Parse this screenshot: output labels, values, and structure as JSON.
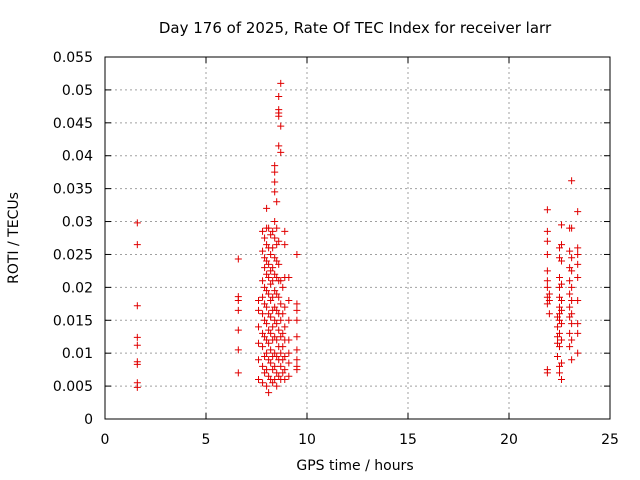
{
  "chart_data": {
    "type": "scatter",
    "title": "Day 176 of 2025, Rate Of TEC Index for receiver larr",
    "xlabel": "GPS time / hours",
    "ylabel": "ROTI / TECUs",
    "xlim": [
      0,
      25
    ],
    "ylim": [
      0,
      0.055
    ],
    "xticks": [
      "0",
      "5",
      "10",
      "15",
      "20",
      "25"
    ],
    "yticks": [
      "0",
      "0.005",
      "0.01",
      "0.015",
      "0.02",
      "0.025",
      "0.03",
      "0.035",
      "0.04",
      "0.045",
      "0.05",
      "0.055"
    ],
    "grid": true,
    "marker": "plus",
    "color": "#e00000",
    "series": [
      {
        "points": [
          [
            1.6,
            0.0298
          ],
          [
            1.6,
            0.0265
          ],
          [
            1.6,
            0.0172
          ],
          [
            1.6,
            0.0124
          ],
          [
            1.6,
            0.0112
          ],
          [
            1.6,
            0.0087
          ],
          [
            1.6,
            0.0083
          ],
          [
            1.6,
            0.0055
          ],
          [
            1.6,
            0.0048
          ],
          [
            6.6,
            0.0243
          ],
          [
            6.6,
            0.0186
          ],
          [
            6.6,
            0.018
          ],
          [
            6.6,
            0.0165
          ],
          [
            6.6,
            0.0135
          ],
          [
            6.6,
            0.0105
          ],
          [
            6.6,
            0.007
          ],
          [
            7.6,
            0.018
          ],
          [
            7.6,
            0.0165
          ],
          [
            7.6,
            0.014
          ],
          [
            7.6,
            0.0115
          ],
          [
            7.6,
            0.009
          ],
          [
            7.6,
            0.006
          ],
          [
            7.8,
            0.0285
          ],
          [
            7.8,
            0.0255
          ],
          [
            7.8,
            0.021
          ],
          [
            7.8,
            0.0185
          ],
          [
            7.8,
            0.016
          ],
          [
            7.8,
            0.013
          ],
          [
            7.8,
            0.011
          ],
          [
            7.8,
            0.008
          ],
          [
            7.8,
            0.0055
          ],
          [
            7.9,
            0.0275
          ],
          [
            7.9,
            0.0245
          ],
          [
            7.9,
            0.023
          ],
          [
            7.9,
            0.02
          ],
          [
            7.9,
            0.0175
          ],
          [
            7.9,
            0.015
          ],
          [
            7.9,
            0.0125
          ],
          [
            7.9,
            0.0095
          ],
          [
            7.9,
            0.007
          ],
          [
            8.0,
            0.032
          ],
          [
            8.0,
            0.029
          ],
          [
            8.0,
            0.0265
          ],
          [
            8.0,
            0.024
          ],
          [
            8.0,
            0.022
          ],
          [
            8.0,
            0.0195
          ],
          [
            8.0,
            0.017
          ],
          [
            8.0,
            0.0145
          ],
          [
            8.0,
            0.012
          ],
          [
            8.0,
            0.01
          ],
          [
            8.0,
            0.0075
          ],
          [
            8.0,
            0.005
          ],
          [
            8.1,
            0.029
          ],
          [
            8.1,
            0.026
          ],
          [
            8.1,
            0.0235
          ],
          [
            8.1,
            0.0215
          ],
          [
            8.1,
            0.019
          ],
          [
            8.1,
            0.016
          ],
          [
            8.1,
            0.0135
          ],
          [
            8.1,
            0.0115
          ],
          [
            8.1,
            0.009
          ],
          [
            8.1,
            0.0065
          ],
          [
            8.1,
            0.004
          ],
          [
            8.2,
            0.028
          ],
          [
            8.2,
            0.025
          ],
          [
            8.2,
            0.0225
          ],
          [
            8.2,
            0.0205
          ],
          [
            8.2,
            0.018
          ],
          [
            8.2,
            0.0155
          ],
          [
            8.2,
            0.013
          ],
          [
            8.2,
            0.0105
          ],
          [
            8.2,
            0.0085
          ],
          [
            8.2,
            0.006
          ],
          [
            8.3,
            0.0285
          ],
          [
            8.3,
            0.026
          ],
          [
            8.3,
            0.023
          ],
          [
            8.3,
            0.021
          ],
          [
            8.3,
            0.0185
          ],
          [
            8.3,
            0.0165
          ],
          [
            8.3,
            0.014
          ],
          [
            8.3,
            0.012
          ],
          [
            8.3,
            0.0095
          ],
          [
            8.3,
            0.0075
          ],
          [
            8.3,
            0.0055
          ],
          [
            8.4,
            0.0385
          ],
          [
            8.4,
            0.0375
          ],
          [
            8.4,
            0.036
          ],
          [
            8.4,
            0.0345
          ],
          [
            8.4,
            0.03
          ],
          [
            8.4,
            0.0275
          ],
          [
            8.4,
            0.0245
          ],
          [
            8.4,
            0.022
          ],
          [
            8.4,
            0.0195
          ],
          [
            8.4,
            0.017
          ],
          [
            8.4,
            0.015
          ],
          [
            8.4,
            0.0125
          ],
          [
            8.4,
            0.01
          ],
          [
            8.4,
            0.008
          ],
          [
            8.4,
            0.006
          ],
          [
            8.5,
            0.033
          ],
          [
            8.5,
            0.029
          ],
          [
            8.5,
            0.0265
          ],
          [
            8.5,
            0.024
          ],
          [
            8.5,
            0.0215
          ],
          [
            8.5,
            0.019
          ],
          [
            8.5,
            0.0165
          ],
          [
            8.5,
            0.0145
          ],
          [
            8.5,
            0.012
          ],
          [
            8.5,
            0.0095
          ],
          [
            8.5,
            0.007
          ],
          [
            8.5,
            0.005
          ],
          [
            8.6,
            0.049
          ],
          [
            8.6,
            0.047
          ],
          [
            8.6,
            0.0465
          ],
          [
            8.6,
            0.046
          ],
          [
            8.6,
            0.0415
          ],
          [
            8.6,
            0.027
          ],
          [
            8.6,
            0.0235
          ],
          [
            8.6,
            0.021
          ],
          [
            8.6,
            0.0185
          ],
          [
            8.6,
            0.016
          ],
          [
            8.6,
            0.0135
          ],
          [
            8.6,
            0.011
          ],
          [
            8.6,
            0.009
          ],
          [
            8.6,
            0.0065
          ],
          [
            8.7,
            0.051
          ],
          [
            8.7,
            0.0445
          ],
          [
            8.7,
            0.0405
          ],
          [
            8.7,
            0.021
          ],
          [
            8.7,
            0.0175
          ],
          [
            8.7,
            0.015
          ],
          [
            8.7,
            0.0125
          ],
          [
            8.7,
            0.01
          ],
          [
            8.7,
            0.008
          ],
          [
            8.7,
            0.006
          ],
          [
            8.8,
            0.02
          ],
          [
            8.8,
            0.016
          ],
          [
            8.8,
            0.013
          ],
          [
            8.8,
            0.011
          ],
          [
            8.8,
            0.009
          ],
          [
            8.8,
            0.007
          ],
          [
            8.9,
            0.0285
          ],
          [
            8.9,
            0.0265
          ],
          [
            8.9,
            0.0215
          ],
          [
            8.9,
            0.017
          ],
          [
            8.9,
            0.014
          ],
          [
            8.9,
            0.012
          ],
          [
            8.9,
            0.0095
          ],
          [
            8.9,
            0.0075
          ],
          [
            8.9,
            0.006
          ],
          [
            9.1,
            0.0215
          ],
          [
            9.1,
            0.018
          ],
          [
            9.1,
            0.015
          ],
          [
            9.1,
            0.012
          ],
          [
            9.1,
            0.01
          ],
          [
            9.1,
            0.0085
          ],
          [
            9.1,
            0.0065
          ],
          [
            9.5,
            0.025
          ],
          [
            9.5,
            0.0175
          ],
          [
            9.5,
            0.0165
          ],
          [
            9.5,
            0.015
          ],
          [
            9.5,
            0.0125
          ],
          [
            9.5,
            0.0105
          ],
          [
            9.5,
            0.009
          ],
          [
            9.5,
            0.008
          ],
          [
            9.5,
            0.0075
          ],
          [
            21.9,
            0.0318
          ],
          [
            21.9,
            0.0285
          ],
          [
            21.9,
            0.027
          ],
          [
            21.9,
            0.025
          ],
          [
            21.9,
            0.0225
          ],
          [
            21.9,
            0.021
          ],
          [
            21.9,
            0.02
          ],
          [
            21.9,
            0.0185
          ],
          [
            21.9,
            0.0175
          ],
          [
            21.9,
            0.0075
          ],
          [
            21.9,
            0.007
          ],
          [
            22.0,
            0.019
          ],
          [
            22.0,
            0.018
          ],
          [
            22.0,
            0.016
          ],
          [
            22.4,
            0.0155
          ],
          [
            22.4,
            0.014
          ],
          [
            22.4,
            0.0125
          ],
          [
            22.4,
            0.0115
          ],
          [
            22.4,
            0.0095
          ],
          [
            22.5,
            0.026
          ],
          [
            22.5,
            0.0245
          ],
          [
            22.5,
            0.0215
          ],
          [
            22.5,
            0.02
          ],
          [
            22.5,
            0.0185
          ],
          [
            22.5,
            0.017
          ],
          [
            22.5,
            0.016
          ],
          [
            22.5,
            0.015
          ],
          [
            22.5,
            0.013
          ],
          [
            22.5,
            0.011
          ],
          [
            22.5,
            0.008
          ],
          [
            22.5,
            0.007
          ],
          [
            22.6,
            0.0295
          ],
          [
            22.6,
            0.0265
          ],
          [
            22.6,
            0.024
          ],
          [
            22.6,
            0.0205
          ],
          [
            22.6,
            0.018
          ],
          [
            22.6,
            0.0165
          ],
          [
            22.6,
            0.0145
          ],
          [
            22.6,
            0.012
          ],
          [
            22.6,
            0.0085
          ],
          [
            22.6,
            0.006
          ],
          [
            23.0,
            0.029
          ],
          [
            23.0,
            0.0255
          ],
          [
            23.0,
            0.023
          ],
          [
            23.0,
            0.021
          ],
          [
            23.0,
            0.019
          ],
          [
            23.0,
            0.017
          ],
          [
            23.0,
            0.0155
          ],
          [
            23.0,
            0.013
          ],
          [
            23.0,
            0.011
          ],
          [
            23.1,
            0.0362
          ],
          [
            23.1,
            0.029
          ],
          [
            23.1,
            0.0245
          ],
          [
            23.1,
            0.0225
          ],
          [
            23.1,
            0.02
          ],
          [
            23.1,
            0.018
          ],
          [
            23.1,
            0.016
          ],
          [
            23.1,
            0.0145
          ],
          [
            23.1,
            0.012
          ],
          [
            23.1,
            0.009
          ],
          [
            23.4,
            0.0315
          ],
          [
            23.4,
            0.026
          ],
          [
            23.4,
            0.025
          ],
          [
            23.4,
            0.0235
          ],
          [
            23.4,
            0.0215
          ],
          [
            23.4,
            0.018
          ],
          [
            23.4,
            0.0145
          ],
          [
            23.4,
            0.013
          ],
          [
            23.4,
            0.01
          ]
        ]
      }
    ]
  }
}
